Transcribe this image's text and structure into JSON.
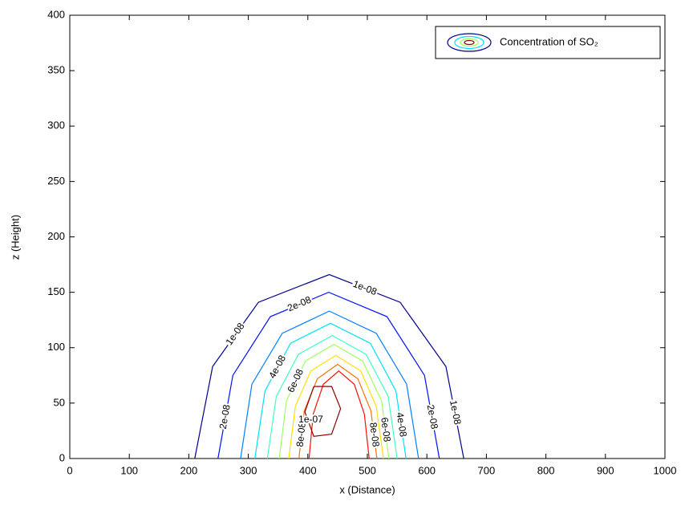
{
  "chart_data": {
    "type": "contour",
    "x_label": "x (Distance)",
    "y_label": "z (Height)",
    "xlim": [
      0,
      1000
    ],
    "xticks": [
      0,
      100,
      200,
      300,
      400,
      500,
      600,
      700,
      800,
      900,
      1000
    ],
    "ylim": [
      0,
      400
    ],
    "yticks": [
      0,
      50,
      100,
      150,
      200,
      250,
      300,
      350,
      400
    ],
    "legend": {
      "label": "Concentration of SO₂",
      "position": "northeast"
    },
    "contours": [
      {
        "label": "1e-08",
        "color": "#00008f",
        "x": [
          210,
          240,
          317,
          436,
          555,
          632,
          662
        ],
        "y": [
          0,
          83,
          141,
          166,
          141,
          83,
          0
        ]
      },
      {
        "label": "2e-08",
        "color": "#0010ff",
        "x": [
          249,
          274,
          337,
          435,
          533,
          596,
          621
        ],
        "y": [
          0,
          75,
          128,
          150,
          128,
          75,
          0
        ]
      },
      {
        "color": "#0080ff",
        "x": [
          287,
          306,
          357,
          436,
          515,
          566,
          586
        ],
        "y": [
          0,
          67,
          113,
          133,
          113,
          67,
          0
        ]
      },
      {
        "label": "4e-08",
        "color": "#00e0ff",
        "x": [
          311,
          328,
          371,
          438,
          505,
          548,
          565
        ],
        "y": [
          0,
          61,
          104,
          122,
          104,
          61,
          0
        ]
      },
      {
        "color": "#40ffc0",
        "x": [
          332,
          347,
          384,
          441,
          498,
          535,
          550
        ],
        "y": [
          0,
          56,
          94,
          111,
          94,
          56,
          0
        ]
      },
      {
        "label": "6e-08",
        "color": "#a0ff60",
        "x": [
          352,
          364,
          396,
          444,
          492,
          524,
          536
        ],
        "y": [
          0,
          52,
          88,
          103,
          88,
          52,
          0
        ]
      },
      {
        "color": "#ffe000",
        "x": [
          368,
          379,
          405,
          447,
          489,
          515,
          527
        ],
        "y": [
          0,
          47,
          79,
          93,
          79,
          47,
          0
        ]
      },
      {
        "label": "8e-08",
        "color": "#ff7000",
        "x": [
          385,
          394,
          416,
          450,
          484,
          506,
          516
        ],
        "y": [
          0,
          43,
          72,
          85,
          72,
          43,
          0
        ]
      },
      {
        "color": "#ff1000",
        "x": [
          402,
          409,
          426,
          452,
          478,
          495,
          503
        ],
        "y": [
          0,
          40,
          67,
          79,
          67,
          40,
          0
        ]
      },
      {
        "label": "1e-07",
        "color": "#900000",
        "x": [
          410,
          440,
          455,
          440,
          410,
          395,
          410
        ],
        "y": [
          65,
          65,
          45,
          22,
          20,
          42,
          65
        ]
      }
    ]
  }
}
